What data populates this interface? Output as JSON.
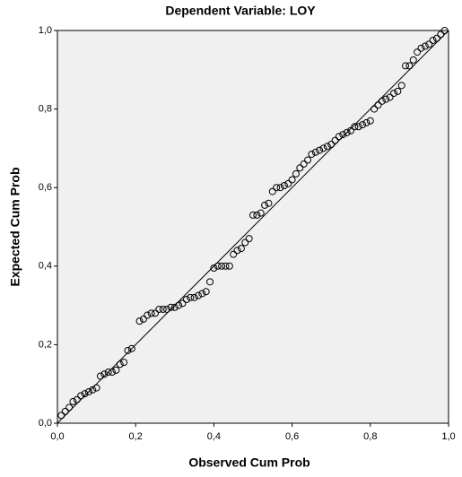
{
  "chart_data": {
    "type": "scatter",
    "title": "Dependent Variable: LOY",
    "xlabel": "Observed Cum Prob",
    "ylabel": "Expected Cum Prob",
    "xlim": [
      0,
      1
    ],
    "ylim": [
      0,
      1
    ],
    "xticks": [
      {
        "value": 0,
        "label": "0,0"
      },
      {
        "value": 0.2,
        "label": "0,2"
      },
      {
        "value": 0.4,
        "label": "0,4"
      },
      {
        "value": 0.6,
        "label": "0,6"
      },
      {
        "value": 0.8,
        "label": "0,8"
      },
      {
        "value": 1,
        "label": "1,0"
      }
    ],
    "yticks": [
      {
        "value": 0,
        "label": "0,0"
      },
      {
        "value": 0.2,
        "label": "0,2"
      },
      {
        "value": 0.4,
        "label": "0,4"
      },
      {
        "value": 0.6,
        "label": "0,6"
      },
      {
        "value": 0.8,
        "label": "0,8"
      },
      {
        "value": 1,
        "label": "1,0"
      }
    ],
    "color": "#000000",
    "x": [
      0.01,
      0.02,
      0.03,
      0.04,
      0.05,
      0.06,
      0.07,
      0.08,
      0.09,
      0.1,
      0.11,
      0.12,
      0.13,
      0.14,
      0.15,
      0.16,
      0.17,
      0.18,
      0.19,
      0.21,
      0.22,
      0.23,
      0.24,
      0.25,
      0.26,
      0.27,
      0.28,
      0.29,
      0.3,
      0.31,
      0.32,
      0.33,
      0.34,
      0.35,
      0.36,
      0.37,
      0.38,
      0.39,
      0.4,
      0.41,
      0.42,
      0.43,
      0.44,
      0.45,
      0.46,
      0.47,
      0.48,
      0.49,
      0.5,
      0.51,
      0.52,
      0.53,
      0.54,
      0.55,
      0.56,
      0.57,
      0.58,
      0.59,
      0.6,
      0.61,
      0.62,
      0.63,
      0.64,
      0.65,
      0.66,
      0.67,
      0.68,
      0.69,
      0.7,
      0.71,
      0.72,
      0.73,
      0.74,
      0.75,
      0.76,
      0.77,
      0.78,
      0.79,
      0.8,
      0.81,
      0.82,
      0.83,
      0.84,
      0.85,
      0.86,
      0.87,
      0.88,
      0.89,
      0.9,
      0.91,
      0.92,
      0.93,
      0.94,
      0.95,
      0.96,
      0.97,
      0.98,
      0.99
    ],
    "values": [
      0.02,
      0.03,
      0.04,
      0.055,
      0.06,
      0.07,
      0.075,
      0.08,
      0.085,
      0.09,
      0.12,
      0.125,
      0.13,
      0.13,
      0.135,
      0.15,
      0.155,
      0.185,
      0.19,
      0.26,
      0.265,
      0.275,
      0.28,
      0.28,
      0.29,
      0.29,
      0.29,
      0.295,
      0.295,
      0.3,
      0.305,
      0.315,
      0.32,
      0.32,
      0.325,
      0.33,
      0.335,
      0.36,
      0.395,
      0.4,
      0.4,
      0.4,
      0.4,
      0.43,
      0.44,
      0.445,
      0.46,
      0.47,
      0.53,
      0.53,
      0.535,
      0.555,
      0.56,
      0.59,
      0.6,
      0.6,
      0.605,
      0.61,
      0.62,
      0.635,
      0.65,
      0.66,
      0.67,
      0.685,
      0.69,
      0.695,
      0.7,
      0.705,
      0.71,
      0.72,
      0.73,
      0.735,
      0.74,
      0.745,
      0.755,
      0.755,
      0.76,
      0.765,
      0.77,
      0.8,
      0.81,
      0.82,
      0.825,
      0.83,
      0.84,
      0.845,
      0.86,
      0.91,
      0.91,
      0.925,
      0.945,
      0.955,
      0.96,
      0.965,
      0.975,
      0.98,
      0.99,
      1.0
    ]
  }
}
